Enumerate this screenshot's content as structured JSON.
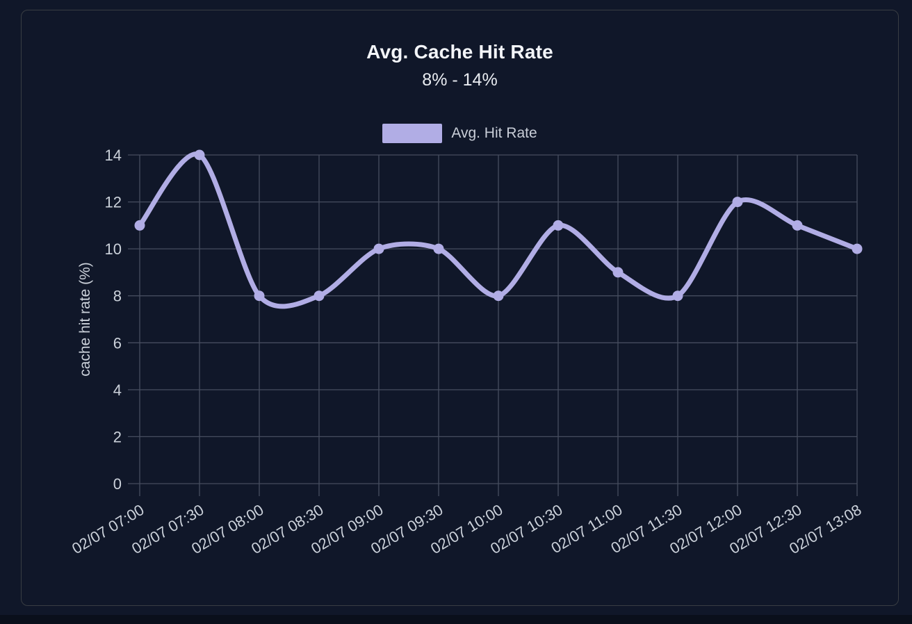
{
  "chart_data": {
    "type": "line",
    "title": "Avg. Cache Hit Rate",
    "subtitle": "8% - 14%",
    "legend": [
      {
        "label": "Avg. Hit Rate",
        "swatch_color": "#b1ade5"
      }
    ],
    "legend_position": "top",
    "categories": [
      "02/07 07:00",
      "02/07 07:30",
      "02/07 08:00",
      "02/07 08:30",
      "02/07 09:00",
      "02/07 09:30",
      "02/07 10:00",
      "02/07 10:30",
      "02/07 11:00",
      "02/07 11:30",
      "02/07 12:00",
      "02/07 12:30",
      "02/07 13:08"
    ],
    "series": [
      {
        "name": "Avg. Hit Rate",
        "values": [
          11,
          14,
          8,
          8,
          10,
          10,
          8,
          11,
          9,
          8,
          12,
          11,
          10
        ]
      }
    ],
    "xlabel": "",
    "ylabel": "cache hit rate (%)",
    "ylim": [
      0,
      14
    ],
    "yticks": [
      0,
      2,
      4,
      6,
      8,
      10,
      12,
      14
    ],
    "grid": true,
    "smooth": true,
    "colors": {
      "series": "#b1ade5",
      "grid": "#464d5f",
      "axis_text": "#ccd2db",
      "background": "#101729",
      "card_border": "#393d43",
      "title_text": "#f3f5f9"
    }
  }
}
